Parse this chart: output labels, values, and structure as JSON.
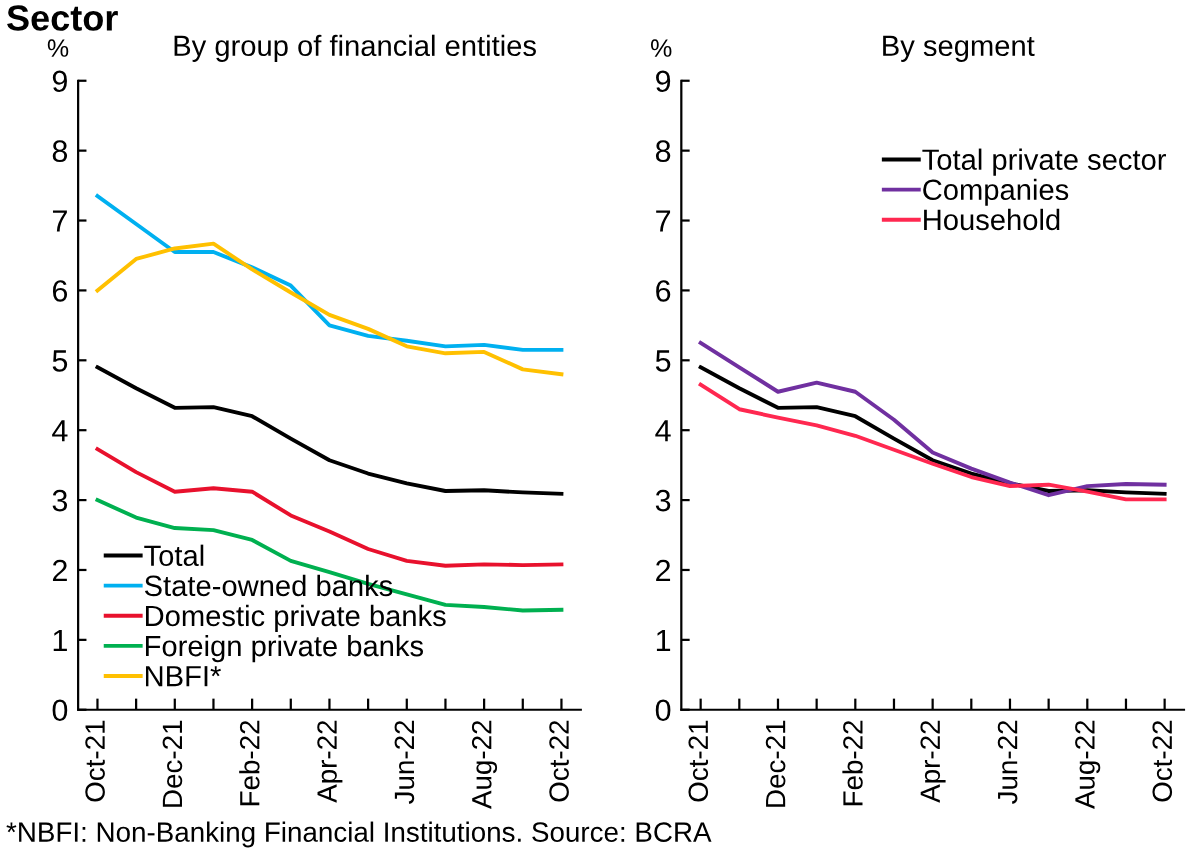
{
  "chart_data": [
    {
      "type": "line",
      "title": "Sector",
      "subtitle": "By group of financial entities",
      "ylabel": "%",
      "categories": [
        "Oct-21",
        null,
        "Dec-21",
        null,
        "Feb-22",
        null,
        "Apr-22",
        null,
        "Jun-22",
        null,
        "Aug-22",
        null,
        "Oct-22"
      ],
      "series": [
        {
          "name": "Total",
          "color": "#000000",
          "values": [
            4.9,
            4.6,
            4.32,
            4.33,
            4.2,
            3.88,
            3.57,
            3.38,
            3.24,
            3.13,
            3.14,
            3.11,
            3.09
          ]
        },
        {
          "name": "State-owned banks",
          "color": "#00b0f0",
          "values": [
            7.35,
            6.95,
            6.55,
            6.55,
            6.33,
            6.07,
            5.5,
            5.35,
            5.28,
            5.2,
            5.22,
            5.15,
            5.15
          ]
        },
        {
          "name": "Domestic private banks",
          "color": "#e8112d",
          "values": [
            3.73,
            3.4,
            3.12,
            3.17,
            3.12,
            2.78,
            2.55,
            2.3,
            2.13,
            2.06,
            2.08,
            2.07,
            2.08
          ]
        },
        {
          "name": "Foreign private banks",
          "color": "#00b050",
          "values": [
            3.0,
            2.75,
            2.6,
            2.57,
            2.43,
            2.13,
            1.97,
            1.8,
            1.65,
            1.5,
            1.47,
            1.42,
            1.43
          ]
        },
        {
          "name": "NBFI*",
          "color": "#ffc000",
          "values": [
            6.0,
            6.45,
            6.6,
            6.67,
            6.3,
            5.97,
            5.65,
            5.45,
            5.2,
            5.1,
            5.12,
            4.87,
            4.8
          ]
        }
      ],
      "ylim": [
        0,
        9
      ],
      "yticks": [
        0,
        1,
        2,
        3,
        4,
        5,
        6,
        7,
        8,
        9
      ],
      "grid": false,
      "legend": "bottom left",
      "marker": "none",
      "line_style": "solid",
      "annotations": [
        "*NBFI: Non-Banking Financial Institutions. Source: BCRA"
      ]
    },
    {
      "type": "line",
      "subtitle": "By segment",
      "ylabel": "%",
      "categories": [
        "Oct-21",
        null,
        "Dec-21",
        null,
        "Feb-22",
        null,
        "Apr-22",
        null,
        "Jun-22",
        null,
        "Aug-22",
        null,
        "Oct-22"
      ],
      "series": [
        {
          "name": "Total private sector",
          "color": "#000000",
          "values": [
            4.9,
            4.6,
            4.32,
            4.33,
            4.2,
            3.88,
            3.57,
            3.38,
            3.24,
            3.13,
            3.14,
            3.11,
            3.09
          ]
        },
        {
          "name": "Companies",
          "color": "#7030a0",
          "values": [
            5.25,
            4.9,
            4.55,
            4.68,
            4.55,
            4.15,
            3.68,
            3.45,
            3.25,
            3.07,
            3.2,
            3.23,
            3.22
          ]
        },
        {
          "name": "Household",
          "color": "#ff2850",
          "values": [
            4.65,
            4.3,
            4.18,
            4.07,
            3.92,
            3.72,
            3.52,
            3.33,
            3.2,
            3.22,
            3.12,
            3.01,
            3.01
          ]
        }
      ],
      "ylim": [
        0,
        9
      ],
      "yticks": [
        0,
        1,
        2,
        3,
        4,
        5,
        6,
        7,
        8,
        9
      ],
      "grid": false,
      "legend": "top right",
      "marker": "none",
      "line_style": "solid"
    }
  ]
}
